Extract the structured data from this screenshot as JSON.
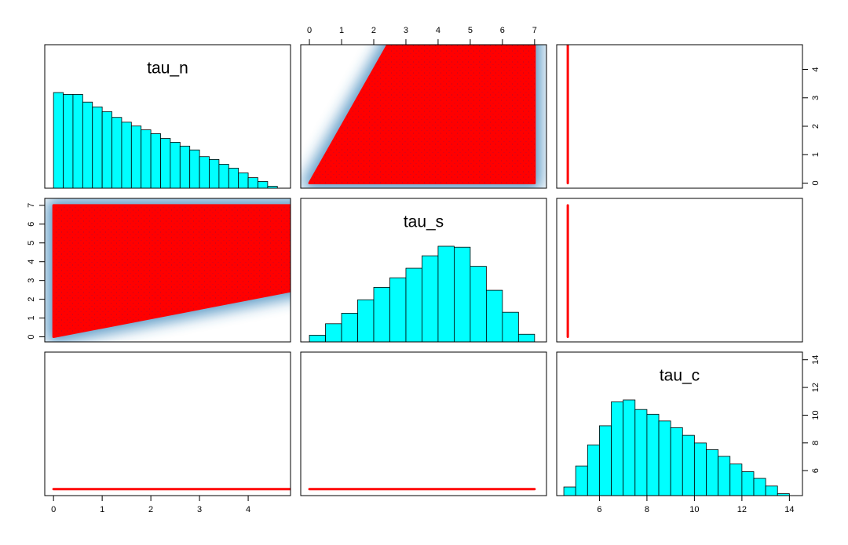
{
  "chart_data": {
    "type": "pairs",
    "variables": [
      {
        "name": "tau_n",
        "lim": [
          -0.18,
          4.87
        ],
        "ticks": [
          0,
          1,
          2,
          3,
          4
        ],
        "hist": {
          "bins": [
            0,
            0.2,
            0.4,
            0.6,
            0.8,
            1.0,
            1.2,
            1.4,
            1.6,
            1.8,
            2.0,
            2.2,
            2.4,
            2.6,
            2.8,
            3.0,
            3.2,
            3.4,
            3.6,
            3.8,
            4.0,
            4.2,
            4.4,
            4.6
          ],
          "counts": [
            1.0,
            0.98,
            0.98,
            0.9,
            0.85,
            0.8,
            0.74,
            0.69,
            0.65,
            0.61,
            0.57,
            0.52,
            0.48,
            0.44,
            0.4,
            0.33,
            0.3,
            0.25,
            0.21,
            0.16,
            0.11,
            0.07,
            0.02
          ]
        }
      },
      {
        "name": "tau_s",
        "lim": [
          -0.27,
          7.37
        ],
        "ticks": [
          0,
          1,
          2,
          3,
          4,
          5,
          6,
          7
        ],
        "hist": {
          "bins": [
            0,
            0.5,
            1.0,
            1.5,
            2.0,
            2.5,
            3.0,
            3.5,
            4.0,
            4.5,
            5.0,
            5.5,
            6.0,
            6.5,
            7.0
          ],
          "counts": [
            0.07,
            0.19,
            0.3,
            0.44,
            0.57,
            0.67,
            0.77,
            0.9,
            1.0,
            0.99,
            0.79,
            0.54,
            0.31,
            0.08
          ]
        }
      },
      {
        "name": "tau_c",
        "lim": [
          4.2,
          14.55
        ],
        "ticks": [
          6,
          8,
          10,
          12,
          14
        ],
        "hist": {
          "bins": [
            4.5,
            5.0,
            5.5,
            6.0,
            6.5,
            7.0,
            7.5,
            8.0,
            8.5,
            9.0,
            9.5,
            10.0,
            10.5,
            11.0,
            11.5,
            12.0,
            12.5,
            13.0,
            13.5,
            14.0
          ],
          "counts": [
            0.09,
            0.31,
            0.53,
            0.73,
            0.98,
            1.0,
            0.9,
            0.85,
            0.78,
            0.71,
            0.63,
            0.55,
            0.48,
            0.41,
            0.33,
            0.25,
            0.18,
            0.1,
            0.02
          ]
        }
      }
    ],
    "hist_ylim": [
      0,
      1.5
    ],
    "hist_color": "#00ffff",
    "point_color": "#ff0000",
    "density_color": "#2b7bb5",
    "support": [
      [
        0,
        0,
        4.667
      ],
      [
        0,
        7,
        4.667
      ],
      [
        14,
        7,
        4.667
      ]
    ]
  }
}
